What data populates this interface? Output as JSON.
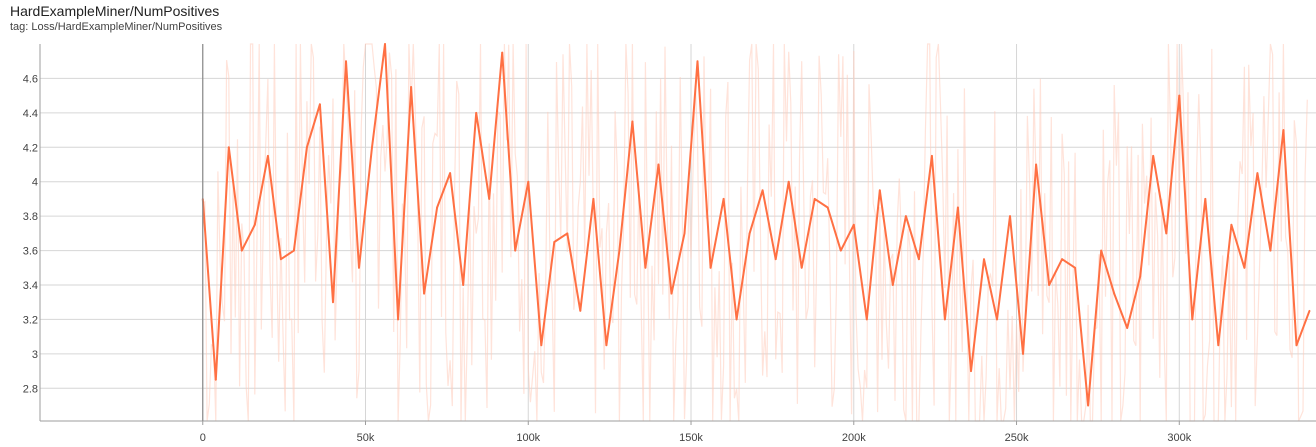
{
  "header": {
    "title": "HardExampleMiner/NumPositives",
    "tag": "tag: Loss/HardExampleMiner/NumPositives"
  },
  "colors": {
    "smoothed": "#ff7043",
    "raw": "#ffccbc",
    "grid": "#d6d6d6",
    "axis": "#9e9e9e"
  },
  "chart_data": {
    "type": "line",
    "title": "HardExampleMiner/NumPositives",
    "xlabel": "",
    "ylabel": "",
    "xlim": [
      -50000,
      342000
    ],
    "ylim": [
      2.61,
      4.8
    ],
    "x_ticks": [
      0,
      50000,
      100000,
      150000,
      200000,
      250000,
      300000
    ],
    "x_tick_labels": [
      "0",
      "50k",
      "100k",
      "150k",
      "200k",
      "250k",
      "300k"
    ],
    "y_ticks": [
      2.8,
      3.0,
      3.2,
      3.4,
      3.6,
      3.8,
      4.0,
      4.2,
      4.4,
      4.6
    ],
    "y_tick_labels": [
      "2.8",
      "3",
      "3.2",
      "3.4",
      "3.6",
      "3.8",
      "4",
      "4.2",
      "4.4",
      "4.6"
    ],
    "series": [
      {
        "name": "smoothed",
        "x": [
          0,
          4000,
          8000,
          12000,
          16000,
          20000,
          24000,
          28000,
          32000,
          36000,
          40000,
          44000,
          48000,
          52000,
          56000,
          60000,
          64000,
          68000,
          72000,
          76000,
          80000,
          84000,
          88000,
          92000,
          96000,
          100000,
          104000,
          108000,
          112000,
          116000,
          120000,
          124000,
          128000,
          132000,
          136000,
          140000,
          144000,
          148000,
          152000,
          156000,
          160000,
          164000,
          168000,
          172000,
          176000,
          180000,
          184000,
          188000,
          192000,
          196000,
          200000,
          204000,
          208000,
          212000,
          216000,
          220000,
          224000,
          228000,
          232000,
          236000,
          240000,
          244000,
          248000,
          252000,
          256000,
          260000,
          264000,
          268000,
          272000,
          276000,
          280000,
          284000,
          288000,
          292000,
          296000,
          300000,
          304000,
          308000,
          312000,
          316000,
          320000,
          324000,
          328000,
          332000,
          336000,
          340000
        ],
        "values": [
          3.9,
          2.85,
          4.2,
          3.6,
          3.75,
          4.15,
          3.55,
          3.6,
          4.2,
          4.45,
          3.3,
          4.7,
          3.5,
          4.2,
          4.8,
          3.2,
          4.55,
          3.35,
          3.85,
          4.05,
          3.4,
          4.4,
          3.9,
          4.75,
          3.6,
          4.0,
          3.05,
          3.65,
          3.7,
          3.25,
          3.9,
          3.05,
          3.6,
          4.35,
          3.5,
          4.1,
          3.35,
          3.7,
          4.7,
          3.5,
          3.9,
          3.2,
          3.7,
          3.95,
          3.55,
          4.0,
          3.5,
          3.9,
          3.85,
          3.6,
          3.75,
          3.2,
          3.95,
          3.4,
          3.8,
          3.55,
          4.15,
          3.2,
          3.85,
          2.9,
          3.55,
          3.2,
          3.8,
          3.0,
          4.1,
          3.4,
          3.55,
          3.5,
          2.7,
          3.6,
          3.35,
          3.15,
          3.45,
          4.15,
          3.7,
          4.5,
          3.2,
          3.9,
          3.05,
          3.75,
          3.5,
          4.05,
          3.6,
          4.3,
          3.05,
          3.25
        ]
      }
    ]
  }
}
